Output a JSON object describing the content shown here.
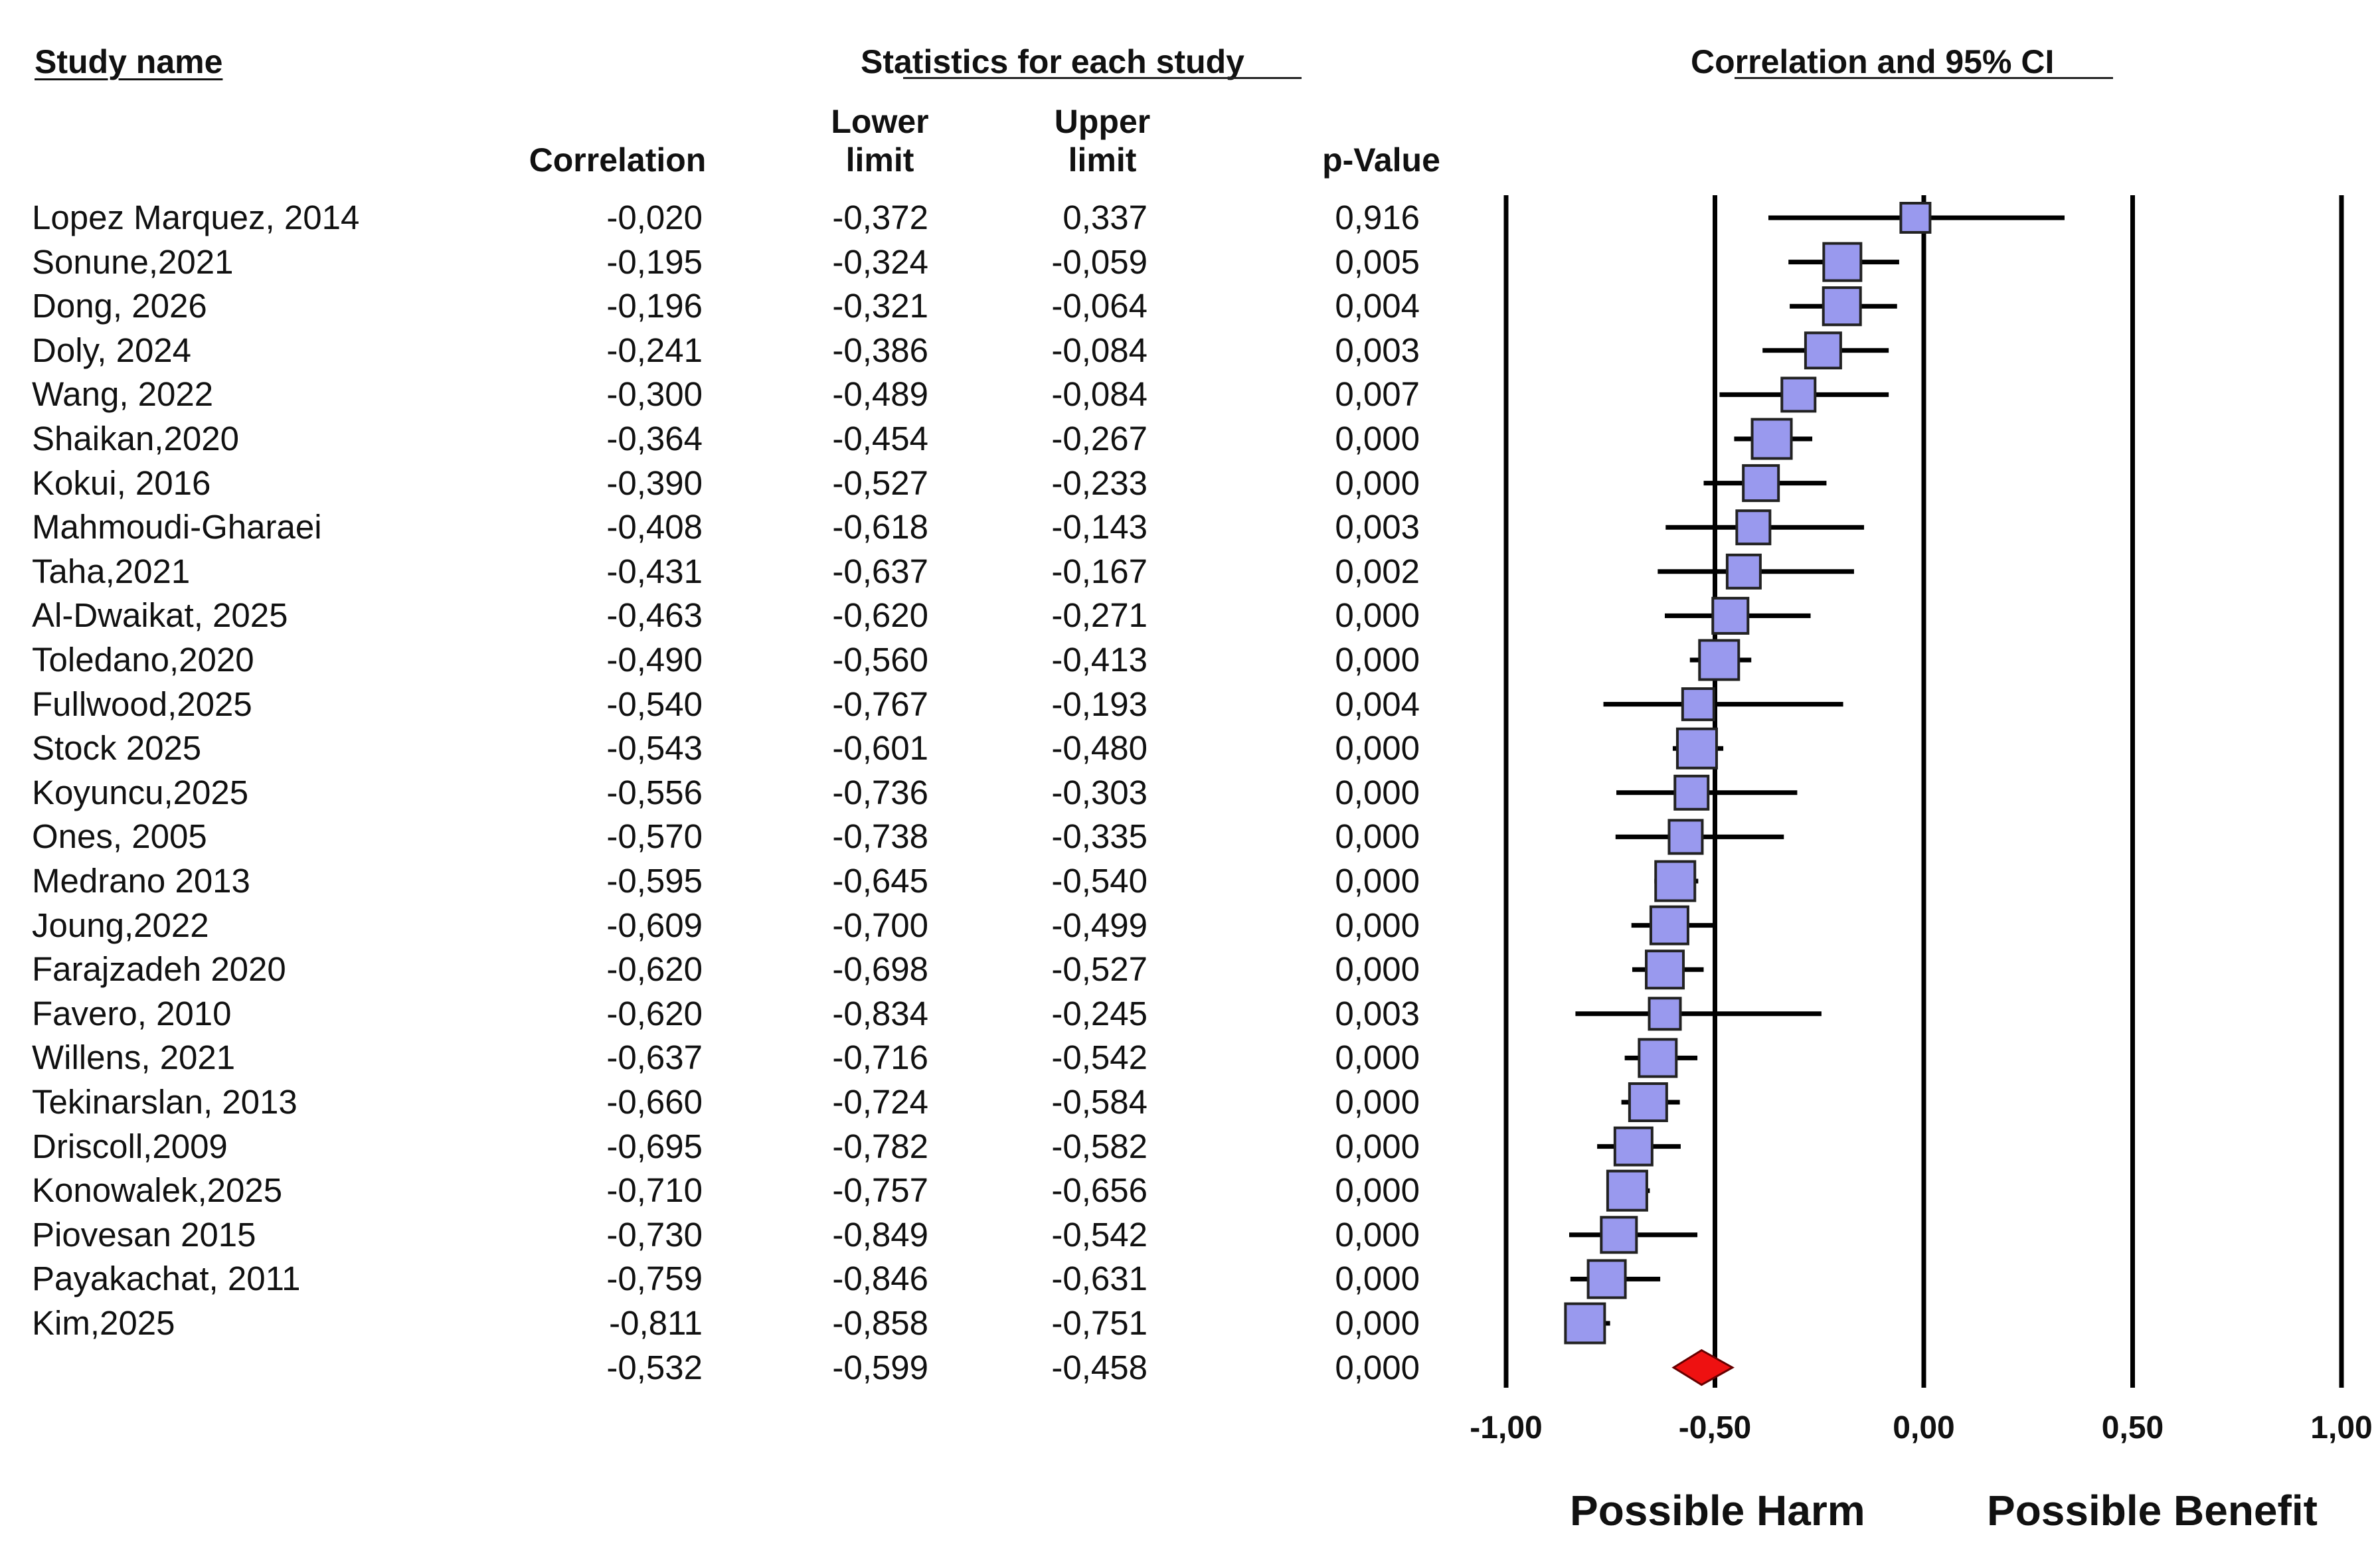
{
  "headers": {
    "study_name": "Study name",
    "statistics": "Statistics for each study",
    "forest": "Correlation and 95% CI",
    "correlation": "Correlation",
    "lower_limit": "Lower limit",
    "upper_limit": "Upper limit",
    "p_value": "p-Value"
  },
  "colors": {
    "study_marker": "#9999ee",
    "summary_marker": "#ee1111",
    "line": "#000000"
  },
  "chart_data": {
    "type": "forest",
    "xlim": [
      -1.0,
      1.0
    ],
    "ticks": [
      {
        "value": -1.0,
        "label": "-1,00"
      },
      {
        "value": -0.5,
        "label": "-0,50"
      },
      {
        "value": 0.0,
        "label": "0,00"
      },
      {
        "value": 0.5,
        "label": "0,50"
      },
      {
        "value": 1.0,
        "label": "1,00"
      }
    ],
    "reference_lines": [
      -1.0,
      -0.5,
      0.0,
      0.5,
      1.0
    ],
    "left_label": "Possible Harm",
    "right_label": "Possible Benefit",
    "studies": [
      {
        "name": "Lopez Marquez, 2014",
        "r": -0.02,
        "lower": -0.372,
        "upper": 0.337,
        "p": "0,916",
        "r_text": "-0,020",
        "lower_text": "-0,372",
        "upper_text": "0,337",
        "weight": 2.0
      },
      {
        "name": "Sonune,2021",
        "r": -0.195,
        "lower": -0.324,
        "upper": -0.059,
        "p": "0,005",
        "r_text": "-0,195",
        "lower_text": "-0,324",
        "upper_text": "-0,059",
        "weight": 4.0
      },
      {
        "name": "Dong, 2026",
        "r": -0.196,
        "lower": -0.321,
        "upper": -0.064,
        "p": "0,004",
        "r_text": "-0,196",
        "lower_text": "-0,321",
        "upper_text": "-0,064",
        "weight": 4.0
      },
      {
        "name": "Doly, 2024",
        "r": -0.241,
        "lower": -0.386,
        "upper": -0.084,
        "p": "0,003",
        "r_text": "-0,241",
        "lower_text": "-0,386",
        "upper_text": "-0,084",
        "weight": 3.5
      },
      {
        "name": "Wang, 2022",
        "r": -0.3,
        "lower": -0.489,
        "upper": -0.084,
        "p": "0,007",
        "r_text": "-0,300",
        "lower_text": "-0,489",
        "upper_text": "-0,084",
        "weight": 3.0
      },
      {
        "name": "Shaikan,2020",
        "r": -0.364,
        "lower": -0.454,
        "upper": -0.267,
        "p": "0,000",
        "r_text": "-0,364",
        "lower_text": "-0,454",
        "upper_text": "-0,267",
        "weight": 4.5
      },
      {
        "name": "Kokui, 2016",
        "r": -0.39,
        "lower": -0.527,
        "upper": -0.233,
        "p": "0,000",
        "r_text": "-0,390",
        "lower_text": "-0,527",
        "upper_text": "-0,233",
        "weight": 3.5
      },
      {
        "name": "Mahmoudi-Gharaei",
        "r": -0.408,
        "lower": -0.618,
        "upper": -0.143,
        "p": "0,003",
        "r_text": "-0,408",
        "lower_text": "-0,618",
        "upper_text": "-0,143",
        "weight": 3.0
      },
      {
        "name": "Taha,2021",
        "r": -0.431,
        "lower": -0.637,
        "upper": -0.167,
        "p": "0,002",
        "r_text": "-0,431",
        "lower_text": "-0,637",
        "upper_text": "-0,167",
        "weight": 3.0
      },
      {
        "name": "Al-Dwaikat, 2025",
        "r": -0.463,
        "lower": -0.62,
        "upper": -0.271,
        "p": "0,000",
        "r_text": "-0,463",
        "lower_text": "-0,620",
        "upper_text": "-0,271",
        "weight": 3.5
      },
      {
        "name": "Toledano,2020",
        "r": -0.49,
        "lower": -0.56,
        "upper": -0.413,
        "p": "0,000",
        "r_text": "-0,490",
        "lower_text": "-0,560",
        "upper_text": "-0,413",
        "weight": 4.5
      },
      {
        "name": "Fullwood,2025",
        "r": -0.54,
        "lower": -0.767,
        "upper": -0.193,
        "p": "0,004",
        "r_text": "-0,540",
        "lower_text": "-0,767",
        "upper_text": "-0,193",
        "weight": 2.5
      },
      {
        "name": "Stock 2025",
        "r": -0.543,
        "lower": -0.601,
        "upper": -0.48,
        "p": "0,000",
        "r_text": "-0,543",
        "lower_text": "-0,601",
        "upper_text": "-0,480",
        "weight": 4.5
      },
      {
        "name": "Koyuncu,2025",
        "r": -0.556,
        "lower": -0.736,
        "upper": -0.303,
        "p": "0,000",
        "r_text": "-0,556",
        "lower_text": "-0,736",
        "upper_text": "-0,303",
        "weight": 3.0
      },
      {
        "name": "Ones, 2005",
        "r": -0.57,
        "lower": -0.738,
        "upper": -0.335,
        "p": "0,000",
        "r_text": "-0,570",
        "lower_text": "-0,738",
        "upper_text": "-0,335",
        "weight": 3.0
      },
      {
        "name": "Medrano 2013",
        "r": -0.595,
        "lower": -0.645,
        "upper": -0.54,
        "p": "0,000",
        "r_text": "-0,595",
        "lower_text": "-0,645",
        "upper_text": "-0,540",
        "weight": 4.5
      },
      {
        "name": "Joung,2022",
        "r": -0.609,
        "lower": -0.7,
        "upper": -0.499,
        "p": "0,000",
        "r_text": "-0,609",
        "lower_text": "-0,700",
        "upper_text": "-0,499",
        "weight": 4.0
      },
      {
        "name": "Farajzadeh 2020",
        "r": -0.62,
        "lower": -0.698,
        "upper": -0.527,
        "p": "0,000",
        "r_text": "-0,620",
        "lower_text": "-0,698",
        "upper_text": "-0,527",
        "weight": 4.0
      },
      {
        "name": "Favero, 2010",
        "r": -0.62,
        "lower": -0.834,
        "upper": -0.245,
        "p": "0,003",
        "r_text": "-0,620",
        "lower_text": "-0,834",
        "upper_text": "-0,245",
        "weight": 2.5
      },
      {
        "name": "Willens, 2021",
        "r": -0.637,
        "lower": -0.716,
        "upper": -0.542,
        "p": "0,000",
        "r_text": "-0,637",
        "lower_text": "-0,716",
        "upper_text": "-0,542",
        "weight": 4.0
      },
      {
        "name": "Tekinarslan, 2013",
        "r": -0.66,
        "lower": -0.724,
        "upper": -0.584,
        "p": "0,000",
        "r_text": "-0,660",
        "lower_text": "-0,724",
        "upper_text": "-0,584",
        "weight": 4.0
      },
      {
        "name": "Driscoll,2009",
        "r": -0.695,
        "lower": -0.782,
        "upper": -0.582,
        "p": "0,000",
        "r_text": "-0,695",
        "lower_text": "-0,782",
        "upper_text": "-0,582",
        "weight": 4.0
      },
      {
        "name": "Konowalek,2025",
        "r": -0.71,
        "lower": -0.757,
        "upper": -0.656,
        "p": "0,000",
        "r_text": "-0,710",
        "lower_text": "-0,757",
        "upper_text": "-0,656",
        "weight": 4.5
      },
      {
        "name": "Piovesan 2015",
        "r": -0.73,
        "lower": -0.849,
        "upper": -0.542,
        "p": "0,000",
        "r_text": "-0,730",
        "lower_text": "-0,849",
        "upper_text": "-0,542",
        "weight": 3.5
      },
      {
        "name": "Payakachat, 2011",
        "r": -0.759,
        "lower": -0.846,
        "upper": -0.631,
        "p": "0,000",
        "r_text": "-0,759",
        "lower_text": "-0,846",
        "upper_text": "-0,631",
        "weight": 4.0
      },
      {
        "name": "Kim,2025",
        "r": -0.811,
        "lower": -0.858,
        "upper": -0.751,
        "p": "0,000",
        "r_text": "-0,811",
        "lower_text": "-0,858",
        "upper_text": "-0,751",
        "weight": 4.5
      }
    ],
    "summary": {
      "r": -0.532,
      "lower": -0.599,
      "upper": -0.458,
      "p": "0,000",
      "r_text": "-0,532",
      "lower_text": "-0,599",
      "upper_text": "-0,458"
    }
  }
}
